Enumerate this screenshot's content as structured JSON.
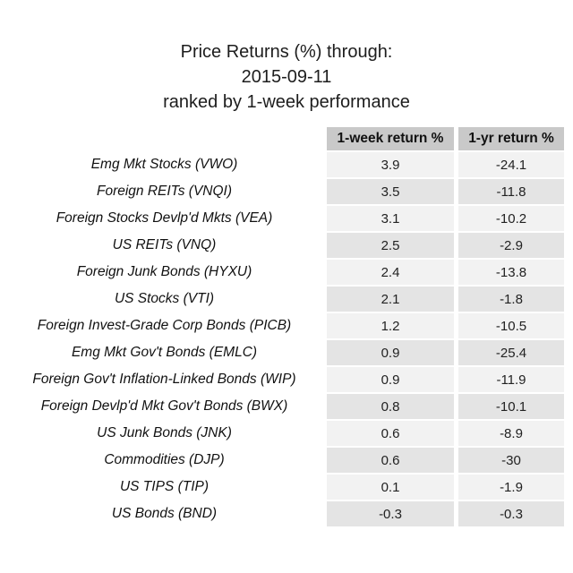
{
  "title": {
    "line1": "Price Returns (%) through:",
    "line2": "2015-09-11",
    "line3": "ranked by 1-week performance"
  },
  "table": {
    "headers": {
      "week": "1-week return %",
      "year": "1-yr return %"
    }
  },
  "colors": {
    "header_bg": "#c9c9c9",
    "row_light_bg": "#f2f2f2",
    "row_dark_bg": "#e4e4e4",
    "text": "#1d1d1d"
  },
  "chart_data": {
    "type": "table",
    "title": "Price Returns (%) through: 2015-09-11, ranked by 1-week performance",
    "columns": [
      "",
      "1-week return %",
      "1-yr return %"
    ],
    "rows": [
      {
        "label": "Emg Mkt Stocks (VWO)",
        "week": 3.9,
        "year": -24.1
      },
      {
        "label": "Foreign REITs (VNQI)",
        "week": 3.5,
        "year": -11.8
      },
      {
        "label": "Foreign Stocks Devlp'd Mkts (VEA)",
        "week": 3.1,
        "year": -10.2
      },
      {
        "label": "US REITs (VNQ)",
        "week": 2.5,
        "year": -2.9
      },
      {
        "label": "Foreign Junk Bonds (HYXU)",
        "week": 2.4,
        "year": -13.8
      },
      {
        "label": "US Stocks (VTI)",
        "week": 2.1,
        "year": -1.8
      },
      {
        "label": "Foreign Invest-Grade Corp Bonds (PICB)",
        "week": 1.2,
        "year": -10.5
      },
      {
        "label": "Emg Mkt Gov't Bonds (EMLC)",
        "week": 0.9,
        "year": -25.4
      },
      {
        "label": "Foreign Gov't Inflation-Linked Bonds (WIP)",
        "week": 0.9,
        "year": -11.9
      },
      {
        "label": "Foreign Devlp'd Mkt Gov't Bonds (BWX)",
        "week": 0.8,
        "year": -10.1
      },
      {
        "label": "US Junk Bonds (JNK)",
        "week": 0.6,
        "year": -8.9
      },
      {
        "label": "Commodities (DJP)",
        "week": 0.6,
        "year": -30
      },
      {
        "label": "US TIPS (TIP)",
        "week": 0.1,
        "year": -1.9
      },
      {
        "label": "US Bonds (BND)",
        "week": -0.3,
        "year": -0.3
      }
    ]
  }
}
